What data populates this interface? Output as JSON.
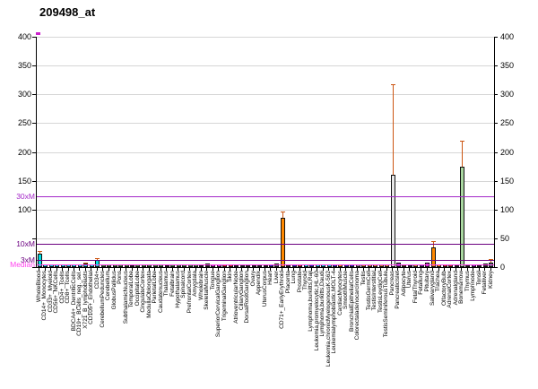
{
  "title": "209498_at",
  "chart_data": {
    "type": "bar",
    "title": "209498_at",
    "xlabel": "",
    "ylabel": "",
    "ylim": [
      0,
      400
    ],
    "yticks": [
      0,
      50,
      100,
      150,
      200,
      250,
      300,
      350,
      400
    ],
    "grid": true,
    "gridline_color": "#d6d6d6",
    "error_bar_color": "#cc5511",
    "reference_lines": [
      {
        "label": "30xM",
        "value": 123,
        "color": "#a428c8"
      },
      {
        "label": "10xM",
        "value": 41,
        "color": "#6b0080"
      },
      {
        "label": "3xM",
        "value": 12.5,
        "color": "#6b0080"
      },
      {
        "label": "Median",
        "value": 4.2,
        "color": "#ff44ee"
      }
    ],
    "categories": [
      "WholeBlood",
      "CD14+_Monocytes",
      "CD33+_Myeloid",
      "CD56+_NKCells",
      "CD4+_Tcells",
      "CD8+_Tcells",
      "BDCA4+_DentriticCells",
      "CD19+_BCells_neg._sel.",
      "X721_B_lymphoblasts",
      "CD105+_Endothelial",
      "CD34+",
      "CerebellumPeduncles",
      "Cerebellum",
      "GlobusPallidus",
      "Pons",
      "SubthalamicNucleus",
      "TemporalLobe",
      "OccipitalLobe",
      "CingulateCortex",
      "MedullaOblongata",
      "ParietalLobe",
      "Caudatenucleus",
      "Thalamus",
      "Fetalbrain",
      "Hypothalamus",
      "Spinalcord",
      "PrefrontalCortex",
      "Amygdala",
      "Wholebrain",
      "SkeletalMuscle",
      "Tongue",
      "SuperiorCervicalGanglion",
      "TrigeminalGanglion",
      "Skin",
      "AtrioventricularNode",
      "CiliaryGanglion",
      "DorsalRootGanglion",
      "Ovary",
      "Appendix",
      "UterusCorpus",
      "Heart",
      "Liver",
      "CD71+_EarlyErythroid",
      "Placenta",
      "Lung",
      "Prostate",
      "Thyroid",
      "Lymphoma,burkitts,Raji",
      "Leukemia,promyelocytic,HL-60",
      "Lymphoma,burkitts,Daudi",
      "Leukemia,chronicMyelogenousK-562",
      "Leukemialymphoblastic,MOLT-4",
      "CardiacMyocytes",
      "SmoothMuscle",
      "BronchialEpithelialCells",
      "Colorectaladenocarcinoma",
      "Testis",
      "TestisGermCell",
      "TestisInterstitial",
      "TestisLeydigCell",
      "TestisSeminiferousTubule",
      "Pancreas",
      "PancreaticIslet",
      "Adipocyte",
      "Uterus",
      "FetalThyroid",
      "Fetallung",
      "Pituitary",
      "Salivarygland",
      "Trachea",
      "OlfactoryBulb",
      "AdrenalCortex",
      "Adrenalgland",
      "Bonemarrow",
      "Thymus",
      "Lymphnode",
      "Tonsil",
      "Fetalliver",
      "Kidney"
    ],
    "values": [
      24,
      5,
      5,
      5,
      5,
      5,
      4,
      5,
      6,
      4,
      13,
      4,
      5,
      4,
      4,
      4,
      3,
      4,
      4,
      4,
      4,
      4,
      3,
      5,
      4,
      5,
      4,
      4,
      3,
      6,
      5,
      4,
      4,
      4,
      4,
      4,
      4,
      4,
      4,
      4,
      5,
      6,
      86,
      4,
      4,
      4,
      4,
      5,
      5,
      5,
      4,
      5,
      4,
      4,
      5,
      5,
      5,
      5,
      4,
      4,
      4,
      160,
      8,
      4,
      4,
      4,
      4,
      8,
      35,
      5,
      4,
      4,
      5,
      175,
      4,
      5,
      5,
      6,
      8
    ],
    "errors_high": [
      28,
      null,
      null,
      null,
      null,
      null,
      null,
      null,
      8,
      null,
      16,
      null,
      null,
      null,
      null,
      null,
      null,
      null,
      null,
      null,
      null,
      null,
      null,
      null,
      null,
      null,
      null,
      null,
      null,
      null,
      null,
      null,
      null,
      null,
      null,
      null,
      null,
      null,
      null,
      null,
      null,
      null,
      96,
      null,
      null,
      null,
      null,
      null,
      null,
      null,
      null,
      null,
      null,
      null,
      null,
      null,
      null,
      null,
      null,
      null,
      null,
      318,
      null,
      null,
      null,
      null,
      null,
      null,
      45,
      null,
      null,
      null,
      null,
      219,
      null,
      null,
      null,
      null,
      14
    ],
    "bar_colors": [
      "#00e0e6",
      "#00e0e6",
      "#00e0e6",
      "#00e0e6",
      "#00e0e6",
      "#00e0e6",
      "#00e0e6",
      "#00e0e6",
      "#00e0e6",
      "#00e0e6",
      "#00e0e6",
      "#2e8b2e",
      "#2e8b2e",
      "#2e8b2e",
      "#2e8b2e",
      "#2e8b2e",
      "#2e8b2e",
      "#2e8b2e",
      "#2e8b2e",
      "#2e8b2e",
      "#2e8b2e",
      "#2e8b2e",
      "#2e8b2e",
      "#2e8b2e",
      "#2e8b2e",
      "#2e8b2e",
      "#2e8b2e",
      "#2e8b2e",
      "#2e8b2e",
      "#1a1a1a",
      "#cc22cc",
      "#cc22cc",
      "#cc2222",
      "#cc2222",
      "#1a1a1a",
      "#1a1a1a",
      "#1a1a1a",
      "#1a1a1a",
      "#1a1a1a",
      "#1a1a1a",
      "#2222bb",
      "#445566",
      "#ff8800",
      "#1a1a1a",
      "#2222bb",
      "#cc2222",
      "#00e0e6",
      "#2222bb",
      "#00e0e6",
      "#00e0e6",
      "#00e0e6",
      "#2222bb",
      "#ff8800",
      "#2222bb",
      "#2222bb",
      "#888888",
      "#cc8822",
      "#cc8822",
      "#cc8822",
      "#cc8822",
      "#cc8822",
      "#e9e9e9",
      "#9922bb",
      "#553311",
      "#1a1a1a",
      "#cc8822",
      "#551a8b",
      "#cc22cc",
      "#ff8800",
      "#ff8800",
      "#cc2222",
      "#cc2222",
      "#1a1a1a",
      "#a9d7a0",
      "#1a1a1a",
      "#9922bb",
      "#1a1a1a",
      "#1a1a1a",
      "#4d7070"
    ],
    "legend": null,
    "legend_position": "none"
  }
}
